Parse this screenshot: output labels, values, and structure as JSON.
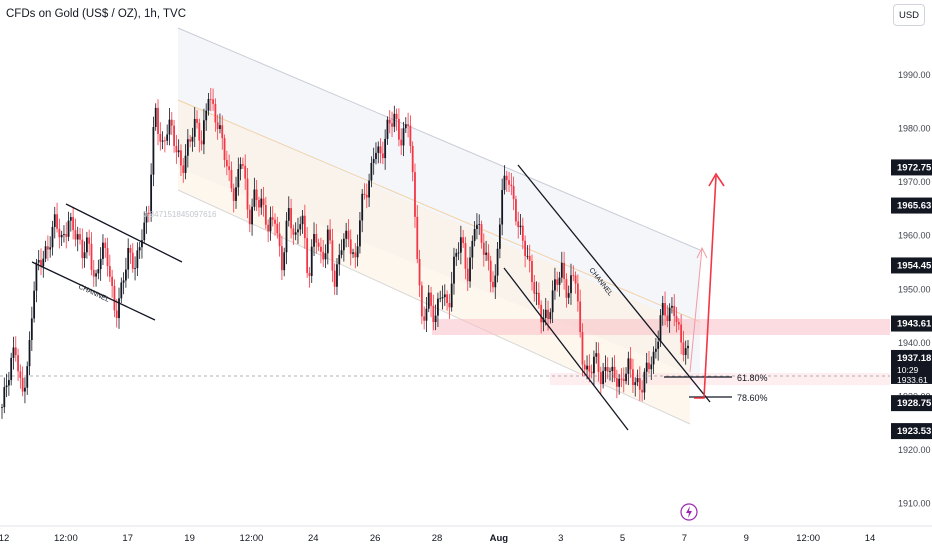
{
  "title": "CFDs on Gold (US$ / OZ), 1h, TVC",
  "currency_button": "USD",
  "colors": {
    "up": "#131722",
    "down": "#f23645",
    "wick": "#333333",
    "fib_zone": "#f9c0c7",
    "channel_fill": "#f0f3fa",
    "channel_fill2": "#fdf1e4",
    "arrow": "#f23645"
  },
  "chart_data": {
    "type": "candlestick",
    "y_range": [
      1906,
      2004
    ],
    "y_ticks": [
      1910,
      1920,
      1930,
      1940,
      1950,
      1960,
      1970,
      1980,
      1990
    ],
    "y_tick_labels": [
      "1910.00",
      "1920.00",
      "1930.00",
      "1940.00",
      "1950.00",
      "1960.00",
      "1970.00",
      "1980.00",
      "1990.00"
    ],
    "x_ticks": [
      "12",
      "12:00",
      "17",
      "19",
      "12:00",
      "24",
      "26",
      "28",
      "Aug",
      "3",
      "5",
      "7",
      "9",
      "12:00",
      "14"
    ],
    "price_tags": [
      {
        "label": "1972.75",
        "value": 1972.75
      },
      {
        "label": "1965.63",
        "value": 1965.63
      },
      {
        "label": "1954.45",
        "value": 1954.45
      },
      {
        "label": "1943.61",
        "value": 1943.61
      },
      {
        "label": "1937.18",
        "value": 1937.18,
        "sub": "10:29",
        "sub2": "1933.61"
      },
      {
        "label": "1928.75",
        "value": 1928.75
      },
      {
        "label": "1923.53",
        "value": 1923.53
      }
    ],
    "fib_levels": [
      {
        "label": "61.80%",
        "value": 1933.3
      },
      {
        "label": "78.60%",
        "value": 1929
      }
    ],
    "annotations": [
      "CHANNEL",
      "CHANNEL",
      "0.847151845097616"
    ],
    "path": [
      1928,
      1933,
      1940,
      1931,
      1936,
      1953,
      1957,
      1958,
      1962,
      1959,
      1964,
      1960,
      1956,
      1960,
      1951,
      1957,
      1955,
      1946,
      1950,
      1956,
      1955,
      1961,
      1963,
      1984,
      1977,
      1981,
      1976,
      1973,
      1978,
      1980,
      1977,
      1988,
      1982,
      1977,
      1972,
      1968,
      1975,
      1962,
      1969,
      1966,
      1960,
      1964,
      1955,
      1964,
      1958,
      1966,
      1952,
      1960,
      1955,
      1962,
      1950,
      1958,
      1961,
      1955,
      1965,
      1969,
      1978,
      1974,
      1980,
      1983,
      1978,
      1981,
      1964,
      1945,
      1948,
      1943,
      1951,
      1947,
      1955,
      1959,
      1953,
      1963,
      1958,
      1955,
      1951,
      1967,
      1971,
      1966,
      1960,
      1954,
      1950,
      1946,
      1944,
      1950,
      1955,
      1949,
      1953,
      1938,
      1935,
      1937,
      1932,
      1937,
      1934,
      1931,
      1936,
      1934,
      1931,
      1935,
      1938,
      1947,
      1944,
      1946,
      1941,
      1938
    ]
  }
}
